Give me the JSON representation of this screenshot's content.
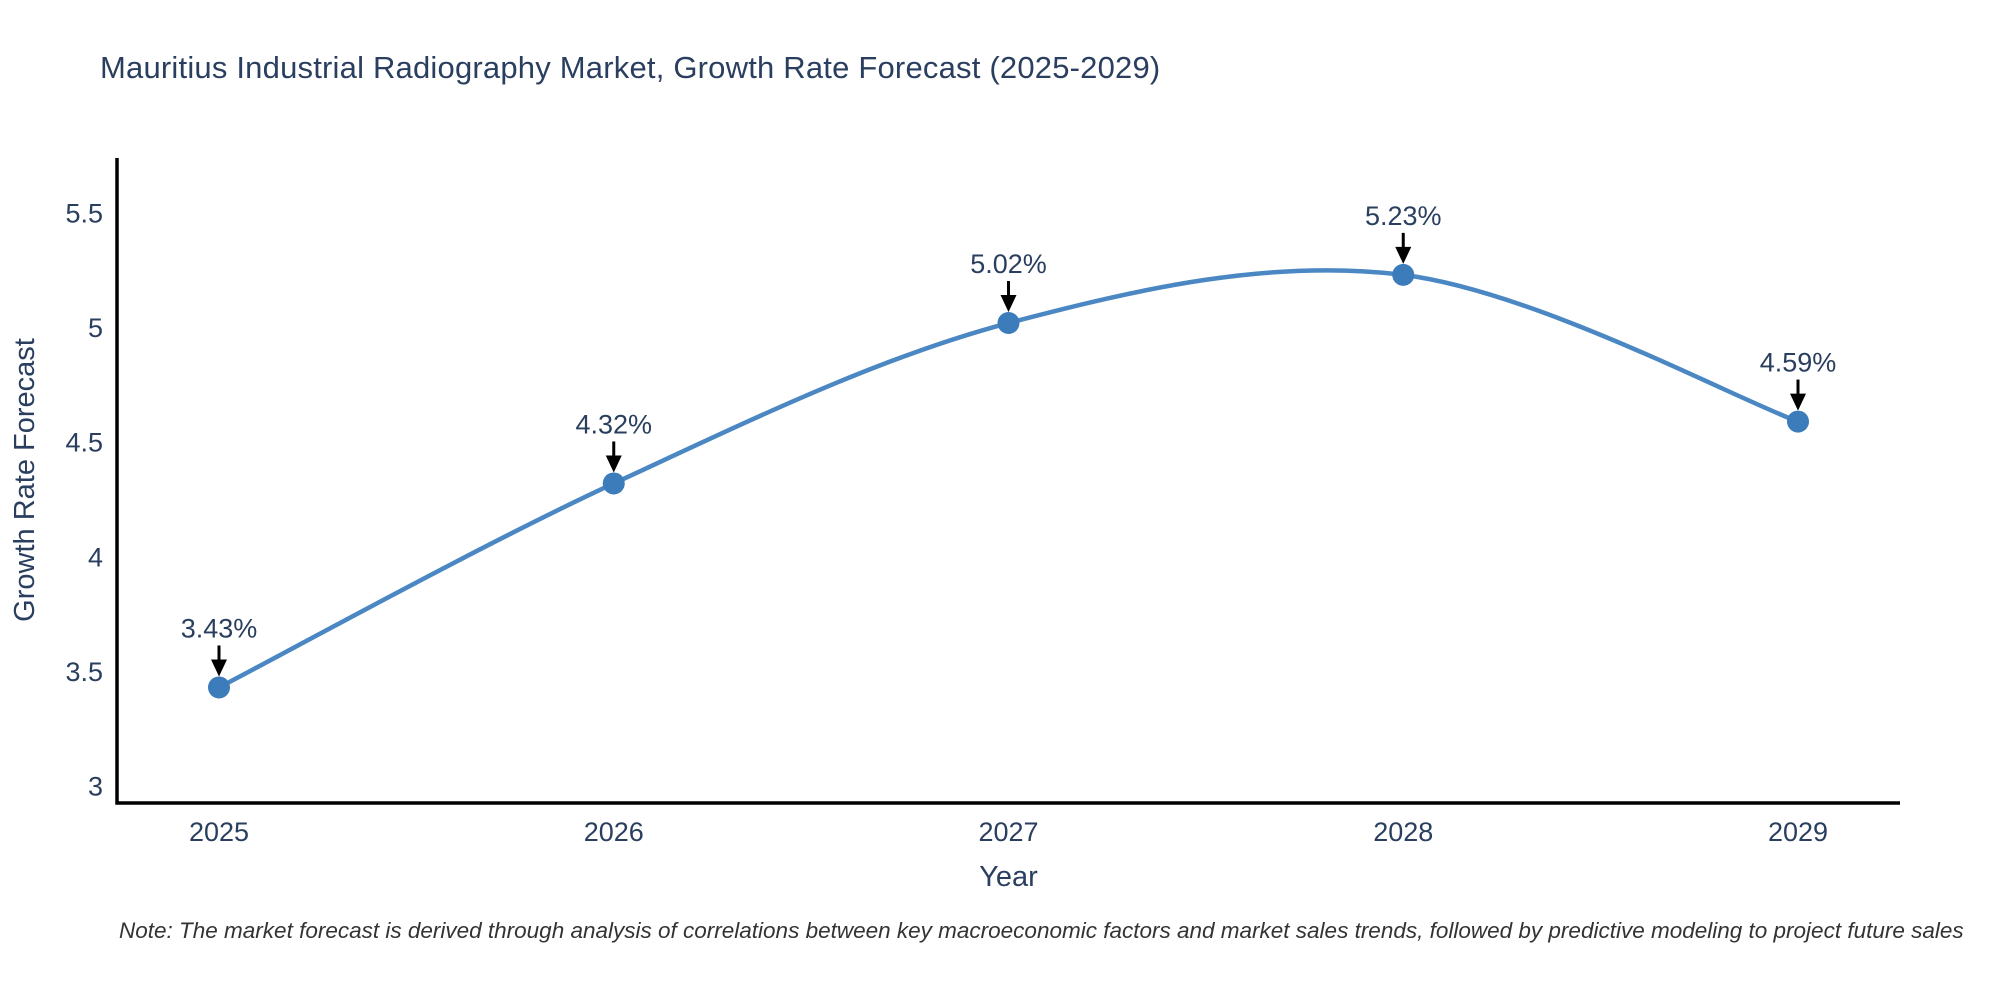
{
  "note": "Note: The market forecast is derived through analysis of correlations between key macroeconomic factors and market sales trends, followed by predictive modeling to project future sales",
  "chart_data": {
    "type": "line",
    "line_shape": "spline",
    "title": "Mauritius Industrial Radiography Market, Growth Rate Forecast (2025-2029)",
    "categories": [
      "2025",
      "2026",
      "2027",
      "2028",
      "2029"
    ],
    "values": [
      3.43,
      4.32,
      5.02,
      5.23,
      4.59
    ],
    "point_labels": [
      "3.43%",
      "4.32%",
      "5.02%",
      "5.23%",
      "4.59%"
    ],
    "xlabel": "Year",
    "ylabel": "Growth Rate Forecast",
    "yticks": [
      3,
      3.5,
      4,
      4.5,
      5,
      5.5
    ],
    "ylim": [
      2.93,
      5.74
    ],
    "grid": false,
    "legend": "none",
    "line_color": "#4a87c3",
    "marker_color": "#3c7cba",
    "annotation_arrow_color": "#000000",
    "axis_color": "#000000",
    "text_color": "#2a3f5f"
  }
}
